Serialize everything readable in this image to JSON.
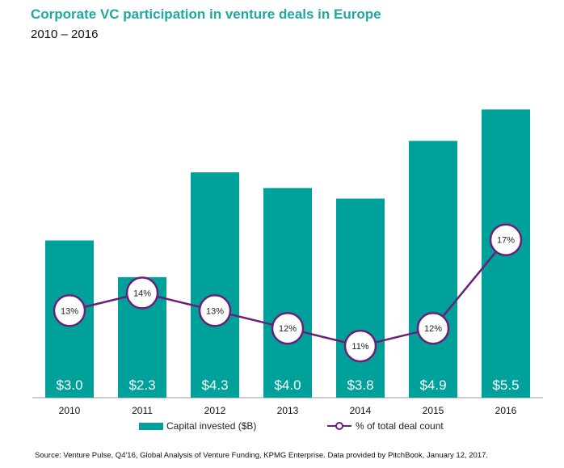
{
  "title": "Corporate VC participation in venture deals in Europe",
  "subtitle": "2010 – 2016",
  "source": "Source: Venture Pulse, Q4'16, Global Analysis of Venture Funding, KPMG Enterprise. Data provided by PitchBook, January 12, 2017.",
  "colors": {
    "bar": "#00a19b",
    "line": "#6a1f78",
    "title": "#1fa7a1"
  },
  "chart_data": {
    "type": "bar",
    "categories": [
      "2010",
      "2011",
      "2012",
      "2013",
      "2014",
      "2015",
      "2016"
    ],
    "ylim": [
      0,
      6.0
    ],
    "series": [
      {
        "name": "Capital invested ($B)",
        "type": "bar",
        "values": [
          3.0,
          2.3,
          4.3,
          4.0,
          3.8,
          4.9,
          5.5
        ],
        "labels": [
          "$3.0",
          "$2.3",
          "$4.3",
          "$4.0",
          "$3.8",
          "$4.9",
          "$5.5"
        ]
      },
      {
        "name": "% of total deal count",
        "type": "line",
        "values": [
          13,
          14,
          13,
          12,
          11,
          12,
          17
        ],
        "labels": [
          "13%",
          "14%",
          "13%",
          "12%",
          "11%",
          "12%",
          "17%"
        ]
      }
    ],
    "legend": "bottom",
    "grid": false
  }
}
